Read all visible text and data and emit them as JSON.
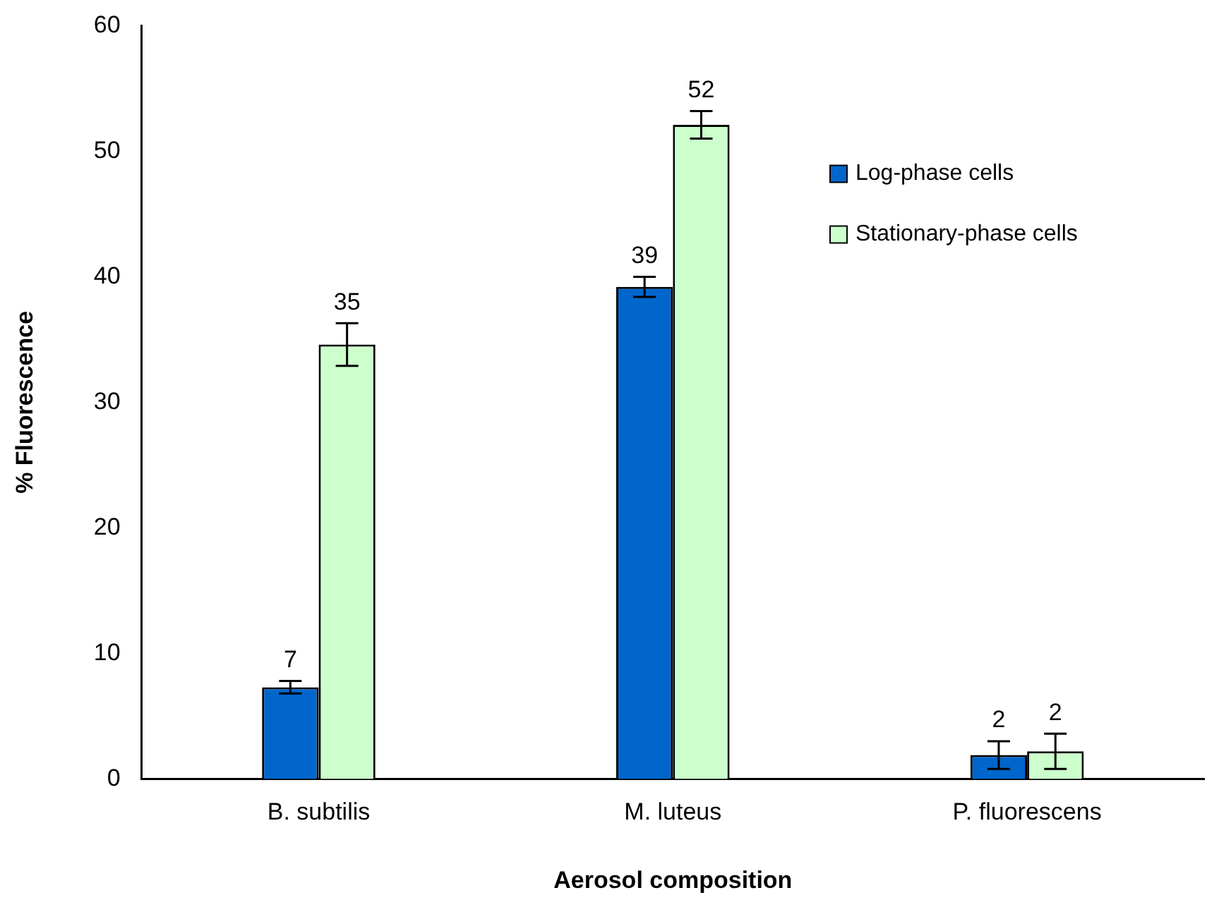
{
  "chart_data": {
    "type": "bar",
    "xlabel": "Aerosol composition",
    "ylabel": "% Fluorescence",
    "categories": [
      "B. subtilis",
      "M. luteus",
      "P. fluorescens"
    ],
    "series": [
      {
        "name": "Log-phase cells",
        "color": "#0066cc",
        "values": [
          7.3,
          39.2,
          1.9
        ],
        "errors": [
          0.5,
          0.8,
          1.1
        ],
        "value_labels": [
          "7",
          "39",
          "2"
        ]
      },
      {
        "name": "Stationary-phase cells",
        "color": "#ccffcc",
        "values": [
          34.6,
          52.1,
          2.2
        ],
        "errors": [
          1.7,
          1.1,
          1.4
        ],
        "value_labels": [
          "35",
          "52",
          "2"
        ]
      }
    ],
    "ylim": [
      0,
      60
    ],
    "yticks": [
      0,
      10,
      20,
      30,
      40,
      50,
      60
    ],
    "grid": false,
    "legend": "top right"
  }
}
